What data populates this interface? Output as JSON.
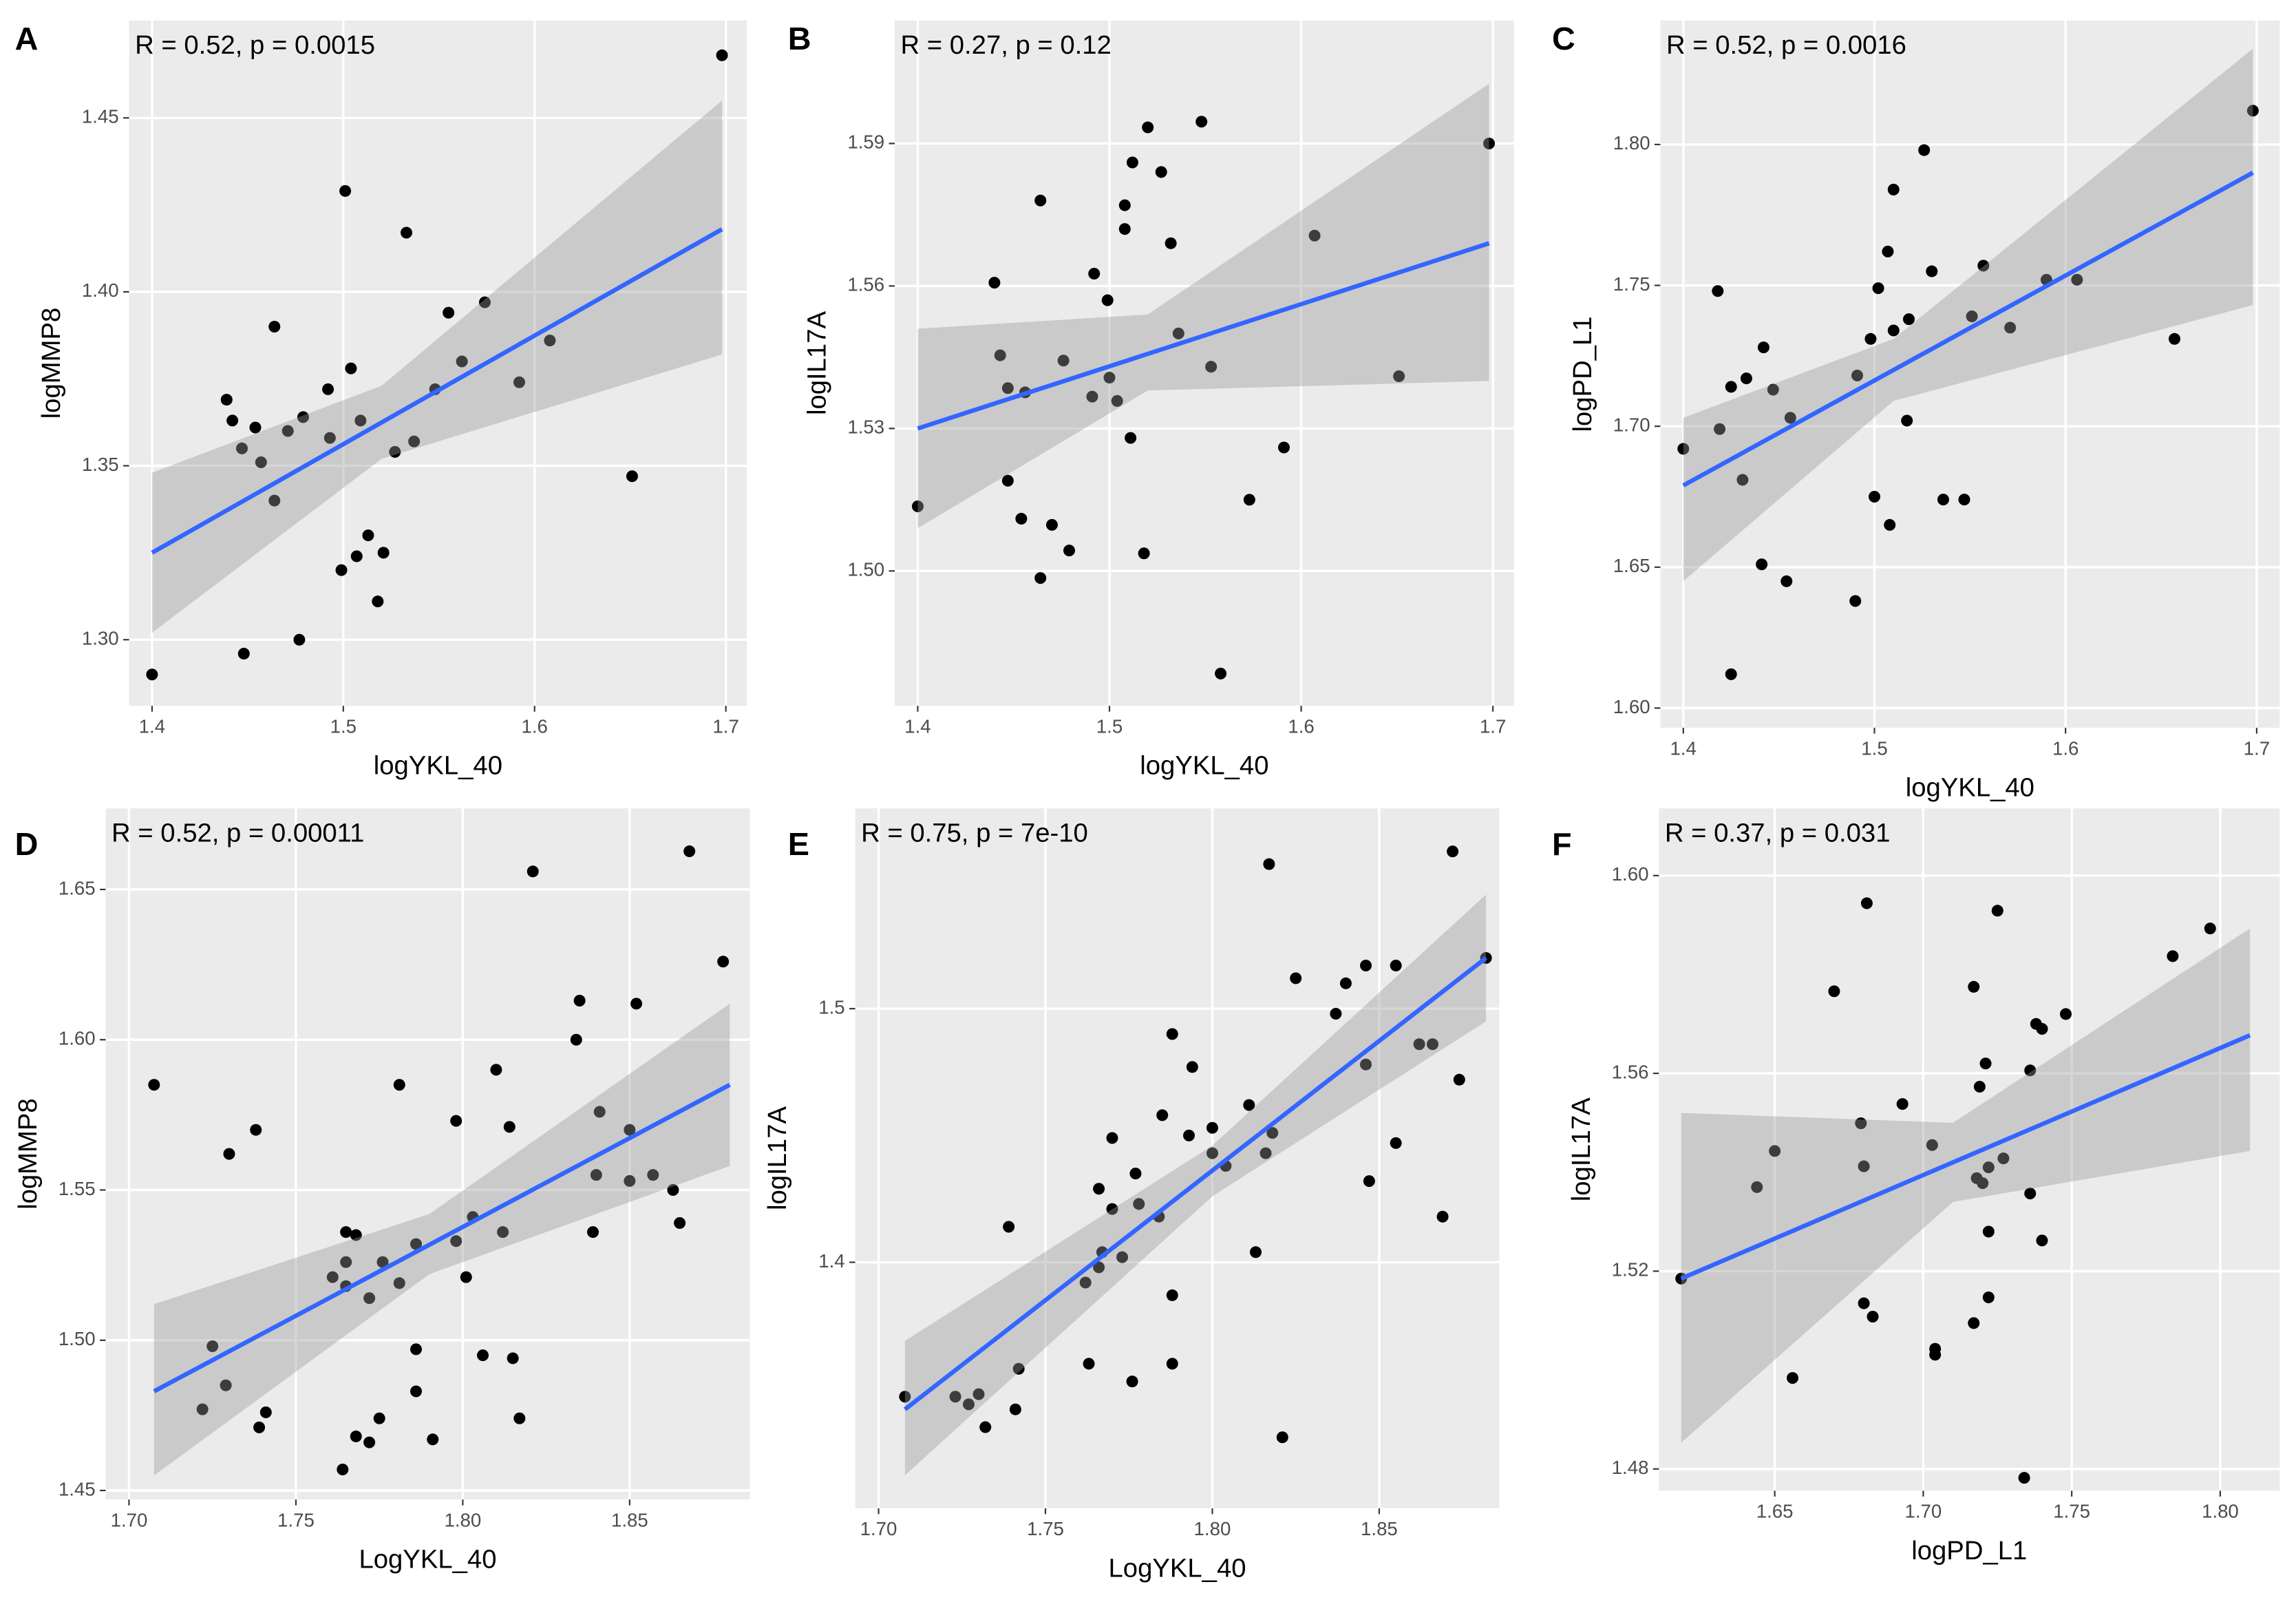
{
  "chart_data": [
    {
      "type": "scatter",
      "panel": "A",
      "annotation": "R = 0.52, p = 0.0015",
      "x_label": "logYKL_40",
      "y_label": "logMMP8",
      "x": [
        1.4,
        1.698,
        1.501,
        1.533,
        1.464,
        1.555,
        1.574,
        1.608,
        1.592,
        1.562,
        1.548,
        1.504,
        1.492,
        1.439,
        1.442,
        1.454,
        1.471,
        1.479,
        1.509,
        1.493,
        1.537,
        1.527,
        1.447,
        1.457,
        1.464,
        1.651,
        1.513,
        1.521,
        1.507,
        1.499,
        1.518,
        1.477,
        1.448
      ],
      "y": [
        1.29,
        1.468,
        1.429,
        1.417,
        1.39,
        1.394,
        1.397,
        1.386,
        1.374,
        1.38,
        1.372,
        1.378,
        1.372,
        1.369,
        1.363,
        1.361,
        1.36,
        1.364,
        1.363,
        1.358,
        1.357,
        1.354,
        1.355,
        1.351,
        1.34,
        1.347,
        1.33,
        1.325,
        1.324,
        1.32,
        1.311,
        1.3,
        1.296
      ],
      "fit": {
        "x": [
          1.4,
          1.698
        ],
        "y": [
          1.325,
          1.418
        ]
      },
      "band": {
        "x": [
          1.4,
          1.52,
          1.698
        ],
        "upper": [
          1.348,
          1.373,
          1.455
        ],
        "lower": [
          1.302,
          1.352,
          1.382
        ]
      },
      "xlim": [
        1.388,
        1.711
      ],
      "ylim": [
        1.281,
        1.478
      ],
      "xticks": [
        1.4,
        1.5,
        1.6,
        1.7
      ],
      "yticks": [
        {
          "value": 1.3,
          "label": "1.30"
        },
        1.35,
        {
          "value": 1.4,
          "label": "1.40"
        },
        1.45
      ],
      "point_color": "#000000",
      "fit_color": "#3366ff",
      "band_color": "#999999",
      "grid": true
    },
    {
      "type": "scatter",
      "panel": "B",
      "annotation": "R = 0.27, p = 0.12",
      "x_label": "logYKL_40",
      "y_label": "logIL17A",
      "x": [
        1.4,
        1.698,
        1.548,
        1.52,
        1.512,
        1.527,
        1.464,
        1.508,
        1.508,
        1.532,
        1.607,
        1.44,
        1.492,
        1.499,
        1.536,
        1.443,
        1.476,
        1.447,
        1.456,
        1.5,
        1.491,
        1.504,
        1.553,
        1.651,
        1.511,
        1.591,
        1.447,
        1.573,
        1.454,
        1.47,
        1.479,
        1.518,
        1.464,
        1.558
      ],
      "y": [
        1.5136,
        1.59,
        1.5946,
        1.5934,
        1.586,
        1.584,
        1.578,
        1.577,
        1.572,
        1.569,
        1.5706,
        1.5607,
        1.5626,
        1.557,
        1.55,
        1.5454,
        1.5443,
        1.5385,
        1.5376,
        1.5407,
        1.5367,
        1.5358,
        1.543,
        1.541,
        1.528,
        1.526,
        1.519,
        1.515,
        1.511,
        1.5097,
        1.5043,
        1.5037,
        1.4985,
        1.4784
      ],
      "fit": {
        "x": [
          1.4,
          1.698
        ],
        "y": [
          1.53,
          1.569
        ]
      },
      "band": {
        "x": [
          1.4,
          1.52,
          1.698
        ],
        "upper": [
          1.551,
          1.554,
          1.6026
        ],
        "lower": [
          1.509,
          1.538,
          1.54
        ]
      },
      "xlim": [
        1.388,
        1.711
      ],
      "ylim": [
        1.4716,
        1.6159
      ],
      "xticks": [
        1.4,
        1.5,
        1.6,
        1.7
      ],
      "yticks": [
        {
          "value": 1.5,
          "label": "1.50"
        },
        1.53,
        1.56,
        1.59
      ],
      "point_color": "#000000",
      "fit_color": "#3366ff",
      "band_color": "#999999",
      "grid": true
    },
    {
      "type": "scatter",
      "panel": "C",
      "annotation": "R = 0.52, p = 0.0016",
      "x_label": "logYKL_40",
      "y_label": "logPD_L1",
      "x": [
        1.4,
        1.698,
        1.526,
        1.51,
        1.507,
        1.53,
        1.557,
        1.418,
        1.502,
        1.59,
        1.606,
        1.551,
        1.518,
        1.51,
        1.571,
        1.498,
        1.442,
        1.657,
        1.433,
        1.491,
        1.425,
        1.447,
        1.456,
        1.419,
        1.517,
        1.431,
        1.5,
        1.536,
        1.547,
        1.508,
        1.441,
        1.454,
        1.49,
        1.425
      ],
      "y": [
        1.692,
        1.812,
        1.798,
        1.784,
        1.762,
        1.755,
        1.757,
        1.748,
        1.749,
        1.752,
        1.752,
        1.739,
        1.738,
        1.734,
        1.735,
        1.731,
        1.728,
        1.731,
        1.717,
        1.718,
        1.714,
        1.713,
        1.703,
        1.699,
        1.702,
        1.681,
        1.675,
        1.674,
        1.674,
        1.665,
        1.651,
        1.645,
        1.638,
        1.612
      ],
      "fit": {
        "x": [
          1.4,
          1.698
        ],
        "y": [
          1.679,
          1.79
        ]
      },
      "band": {
        "x": [
          1.4,
          1.51,
          1.698
        ],
        "upper": [
          1.703,
          1.731,
          1.834
        ],
        "lower": [
          1.645,
          1.709,
          1.743
        ]
      },
      "xlim": [
        1.388,
        1.712
      ],
      "ylim": [
        1.593,
        1.844
      ],
      "xticks": [
        1.4,
        1.5,
        1.6,
        1.7
      ],
      "yticks": [
        {
          "value": 1.6,
          "label": "1.60"
        },
        1.65,
        {
          "value": 1.7,
          "label": "1.70"
        },
        1.75,
        {
          "value": 1.8,
          "label": "1.80"
        }
      ],
      "point_color": "#000000",
      "fit_color": "#3366ff",
      "band_color": "#999999",
      "grid": true
    },
    {
      "type": "scatter",
      "panel": "D",
      "annotation": "R = 0.52, p = 0.00011",
      "x_label": "LogYKL_40",
      "y_label": "logMMP8",
      "x": [
        1.7075,
        1.8679,
        1.821,
        1.878,
        1.835,
        1.852,
        1.834,
        1.81,
        1.781,
        1.738,
        1.73,
        1.798,
        1.814,
        1.841,
        1.85,
        1.803,
        1.812,
        1.839,
        1.84,
        1.85,
        1.857,
        1.863,
        1.865,
        1.765,
        1.768,
        1.786,
        1.798,
        1.765,
        1.776,
        1.761,
        1.781,
        1.765,
        1.772,
        1.801,
        1.725,
        1.729,
        1.722,
        1.786,
        1.806,
        1.815,
        1.786,
        1.741,
        1.775,
        1.817,
        1.739,
        1.768,
        1.772,
        1.791,
        1.764
      ],
      "y": [
        1.585,
        1.6627,
        1.656,
        1.626,
        1.613,
        1.612,
        1.6,
        1.59,
        1.585,
        1.57,
        1.562,
        1.573,
        1.571,
        1.576,
        1.57,
        1.541,
        1.536,
        1.536,
        1.555,
        1.553,
        1.555,
        1.55,
        1.539,
        1.536,
        1.535,
        1.532,
        1.533,
        1.526,
        1.526,
        1.521,
        1.519,
        1.518,
        1.514,
        1.521,
        1.498,
        1.485,
        1.477,
        1.497,
        1.495,
        1.494,
        1.483,
        1.476,
        1.474,
        1.474,
        1.471,
        1.468,
        1.466,
        1.467,
        1.457
      ],
      "fit": {
        "x": [
          1.7075,
          1.88
        ],
        "y": [
          1.483,
          1.585
        ]
      },
      "band": {
        "x": [
          1.7075,
          1.79,
          1.88
        ],
        "upper": [
          1.512,
          1.542,
          1.612
        ],
        "lower": [
          1.455,
          1.522,
          1.558
        ]
      },
      "xlim": [
        1.693,
        1.886
      ],
      "ylim": [
        1.447,
        1.677
      ],
      "xticks": [
        {
          "value": 1.7,
          "label": "1.70"
        },
        1.75,
        {
          "value": 1.8,
          "label": "1.80"
        },
        1.85
      ],
      "yticks": [
        1.45,
        {
          "value": 1.5,
          "label": "1.50"
        },
        1.55,
        {
          "value": 1.6,
          "label": "1.60"
        },
        1.65
      ],
      "point_color": "#000000",
      "fit_color": "#3366ff",
      "band_color": "#999999",
      "grid": true
    },
    {
      "type": "scatter",
      "panel": "E",
      "annotation": "R = 0.75, p = 7e-10",
      "x_label": "LogYKL_40",
      "y_label": "logIL17A",
      "x": [
        1.7079,
        1.872,
        1.817,
        1.882,
        1.825,
        1.846,
        1.855,
        1.84,
        1.837,
        1.788,
        1.862,
        1.866,
        1.874,
        1.794,
        1.846,
        1.811,
        1.785,
        1.77,
        1.793,
        1.8,
        1.818,
        1.8,
        1.804,
        1.816,
        1.855,
        1.847,
        1.777,
        1.766,
        1.77,
        1.778,
        1.784,
        1.869,
        1.739,
        1.813,
        1.767,
        1.773,
        1.766,
        1.762,
        1.788,
        1.742,
        1.763,
        1.788,
        1.776,
        1.723,
        1.727,
        1.73,
        1.741,
        1.732,
        1.821
      ],
      "y": [
        1.347,
        1.562,
        1.557,
        1.52,
        1.512,
        1.517,
        1.517,
        1.51,
        1.498,
        1.49,
        1.486,
        1.486,
        1.472,
        1.477,
        1.478,
        1.462,
        1.458,
        1.449,
        1.45,
        1.453,
        1.451,
        1.443,
        1.438,
        1.443,
        1.447,
        1.432,
        1.435,
        1.429,
        1.421,
        1.423,
        1.418,
        1.418,
        1.414,
        1.404,
        1.404,
        1.402,
        1.398,
        1.392,
        1.387,
        1.358,
        1.36,
        1.36,
        1.353,
        1.347,
        1.344,
        1.348,
        1.342,
        1.335,
        1.331
      ],
      "fit": {
        "x": [
          1.7079,
          1.882
        ],
        "y": [
          1.342,
          1.52
        ]
      },
      "band": {
        "x": [
          1.7079,
          1.8,
          1.882
        ],
        "upper": [
          1.369,
          1.446,
          1.545
        ],
        "lower": [
          1.316,
          1.426,
          1.495
        ]
      },
      "xlim": [
        1.693,
        1.886
      ],
      "ylim": [
        1.303,
        1.579
      ],
      "xticks": [
        {
          "value": 1.7,
          "label": "1.70"
        },
        1.75,
        {
          "value": 1.8,
          "label": "1.80"
        },
        1.85
      ],
      "yticks": [
        1.4,
        1.5
      ],
      "point_color": "#000000",
      "fit_color": "#3366ff",
      "band_color": "#999999",
      "grid": true
    },
    {
      "type": "scatter",
      "panel": "F",
      "annotation": "R = 0.37, p = 0.031",
      "x_label": "logPD_L1",
      "y_label": "logIL17A",
      "x": [
        1.6185,
        1.7966,
        1.784,
        1.681,
        1.725,
        1.67,
        1.717,
        1.748,
        1.738,
        1.74,
        1.721,
        1.693,
        1.679,
        1.719,
        1.736,
        1.65,
        1.644,
        1.68,
        1.703,
        1.718,
        1.72,
        1.727,
        1.722,
        1.736,
        1.722,
        1.74,
        1.722,
        1.68,
        1.683,
        1.704,
        1.704,
        1.717,
        1.656,
        1.734
      ],
      "y": [
        1.5185,
        1.5893,
        1.5837,
        1.5944,
        1.5929,
        1.5766,
        1.5775,
        1.572,
        1.57,
        1.569,
        1.562,
        1.5538,
        1.5499,
        1.5573,
        1.5606,
        1.5443,
        1.537,
        1.5412,
        1.5455,
        1.5388,
        1.5378,
        1.5428,
        1.541,
        1.5357,
        1.528,
        1.5262,
        1.5147,
        1.5135,
        1.5108,
        1.5043,
        1.5031,
        1.5095,
        1.4984,
        1.4782
      ],
      "fit": {
        "x": [
          1.6185,
          1.81
        ],
        "y": [
          1.5185,
          1.5677
        ]
      },
      "band": {
        "x": [
          1.6185,
          1.71,
          1.81
        ],
        "upper": [
          1.552,
          1.55,
          1.5893
        ],
        "lower": [
          1.4853,
          1.534,
          1.5443
        ]
      },
      "xlim": [
        1.611,
        1.82
      ],
      "ylim": [
        1.4756,
        1.6136
      ],
      "xticks": [
        1.65,
        {
          "value": 1.7,
          "label": "1.70"
        },
        1.75,
        {
          "value": 1.8,
          "label": "1.80"
        }
      ],
      "yticks": [
        1.48,
        1.52,
        1.56,
        {
          "value": 1.6,
          "label": "1.60"
        }
      ],
      "point_color": "#000000",
      "fit_color": "#3366ff",
      "band_color": "#999999",
      "grid": true
    }
  ]
}
